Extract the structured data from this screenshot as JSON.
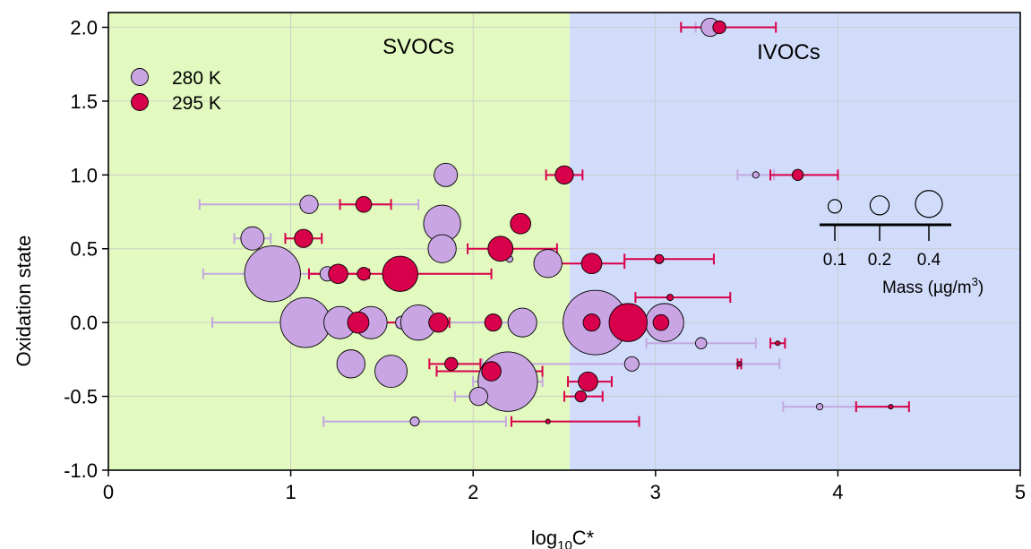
{
  "colors": {
    "svoc_region": "#e2f9bf",
    "ivoc_region": "#d1dcfa",
    "s280_fill": "#c9a6e3",
    "s280_bar": "#c3a8e0",
    "s295_fill": "#d8004a",
    "s295_bar": "#d8004a",
    "grid": "#c8c8c8"
  },
  "chart_data": {
    "type": "scatter",
    "xlabel_main": "log",
    "xlabel_sub": "10",
    "xlabel_tail": "C*",
    "ylabel": "Oxidation state",
    "xlim": [
      0,
      5
    ],
    "ylim": [
      -1.0,
      2.1
    ],
    "xticks": [
      0,
      1,
      2,
      3,
      4,
      5
    ],
    "xtick_labels": [
      "0",
      "1",
      "2",
      "3",
      "4",
      "5"
    ],
    "yticks": [
      -1.0,
      -0.5,
      0.0,
      0.5,
      1.0,
      1.5,
      2.0
    ],
    "ytick_labels": [
      "-1.0",
      "-0.5",
      "0.0",
      "0.5",
      "1.0",
      "1.5",
      "2.0"
    ],
    "grid": true,
    "regions": [
      {
        "label": "SVOCs",
        "x_range": [
          0,
          2.53
        ]
      },
      {
        "label": "IVOCs",
        "x_range": [
          2.53,
          5
        ]
      }
    ],
    "legend_position": "top-left",
    "size_legend": {
      "title": "Mass (µg/m",
      "title_sup": "3",
      "title_end": ")",
      "values": [
        0.1,
        0.2,
        0.4
      ],
      "labels": [
        "0.1",
        "0.2",
        "0.4"
      ]
    },
    "series": [
      {
        "name": "280 K",
        "points": [
          {
            "x": 3.3,
            "y": 2.0,
            "mass": 0.08,
            "xerr": [
              3.22,
              3.38
            ]
          },
          {
            "x": 1.85,
            "y": 1.0,
            "mass": 0.13
          },
          {
            "x": 3.55,
            "y": 1.0,
            "mass": 0.01,
            "xerr": [
              3.45,
              3.65
            ]
          },
          {
            "x": 1.1,
            "y": 0.8,
            "mass": 0.08,
            "xerr": [
              0.5,
              1.7
            ]
          },
          {
            "x": 1.83,
            "y": 0.67,
            "mass": 0.33
          },
          {
            "x": 0.79,
            "y": 0.57,
            "mass": 0.13,
            "xerr": [
              0.69,
              0.89
            ]
          },
          {
            "x": 1.83,
            "y": 0.5,
            "mass": 0.19
          },
          {
            "x": 2.2,
            "y": 0.43,
            "mass": 0.01
          },
          {
            "x": 2.41,
            "y": 0.4,
            "mass": 0.19,
            "xerr": [
              2.35,
              2.47
            ]
          },
          {
            "x": 0.9,
            "y": 0.33,
            "mass": 0.75,
            "xerr": [
              0.52,
              1.3
            ]
          },
          {
            "x": 1.2,
            "y": 0.33,
            "mass": 0.05
          },
          {
            "x": 1.4,
            "y": 0.33,
            "mass": 0.02
          },
          {
            "x": 2.67,
            "y": 0.17,
            "mass": 0.04
          },
          {
            "x": 1.08,
            "y": 0.0,
            "mass": 0.6,
            "xerr": [
              0.57,
              1.58
            ]
          },
          {
            "x": 1.27,
            "y": 0.0,
            "mass": 0.25
          },
          {
            "x": 1.44,
            "y": 0.0,
            "mass": 0.25
          },
          {
            "x": 1.61,
            "y": 0.0,
            "mass": 0.04
          },
          {
            "x": 1.7,
            "y": 0.0,
            "mass": 0.3,
            "xerr": [
              1.2,
              2.2
            ]
          },
          {
            "x": 2.27,
            "y": 0.0,
            "mass": 0.2
          },
          {
            "x": 2.67,
            "y": 0.0,
            "mass": 1.0,
            "xerr": [
              2.52,
              2.82
            ]
          },
          {
            "x": 3.05,
            "y": 0.0,
            "mass": 0.35,
            "xerr": [
              2.95,
              3.15
            ]
          },
          {
            "x": 3.25,
            "y": -0.14,
            "mass": 0.03,
            "xerr": [
              2.95,
              3.55
            ]
          },
          {
            "x": 1.33,
            "y": -0.28,
            "mass": 0.19
          },
          {
            "x": 1.55,
            "y": -0.33,
            "mass": 0.25
          },
          {
            "x": 2.87,
            "y": -0.28,
            "mass": 0.05,
            "xerr": [
              2.05,
              3.68
            ]
          },
          {
            "x": 2.19,
            "y": -0.4,
            "mass": 0.85,
            "xerr": [
              2.0,
              2.38
            ]
          },
          {
            "x": 2.03,
            "y": -0.5,
            "mass": 0.08,
            "xerr": [
              1.9,
              2.16
            ]
          },
          {
            "x": 1.68,
            "y": -0.67,
            "mass": 0.02,
            "xerr": [
              1.18,
              2.18
            ]
          },
          {
            "x": 3.9,
            "y": -0.57,
            "mass": 0.01,
            "xerr": [
              3.7,
              4.1
            ]
          }
        ]
      },
      {
        "name": "295 K",
        "points": [
          {
            "x": 3.35,
            "y": 2.0,
            "mass": 0.04,
            "xerr": [
              3.14,
              3.66
            ]
          },
          {
            "x": 2.5,
            "y": 1.0,
            "mass": 0.08,
            "xerr": [
              2.4,
              2.6
            ]
          },
          {
            "x": 3.78,
            "y": 1.0,
            "mass": 0.03,
            "xerr": [
              3.63,
              4.0
            ]
          },
          {
            "x": 1.4,
            "y": 0.8,
            "mass": 0.06,
            "xerr": [
              1.27,
              1.55
            ]
          },
          {
            "x": 2.26,
            "y": 0.67,
            "mass": 0.1
          },
          {
            "x": 1.07,
            "y": 0.57,
            "mass": 0.08,
            "xerr": [
              0.97,
              1.17
            ]
          },
          {
            "x": 2.15,
            "y": 0.5,
            "mass": 0.15,
            "xerr": [
              1.97,
              2.46
            ]
          },
          {
            "x": 2.65,
            "y": 0.4,
            "mass": 0.1,
            "xerr": [
              2.44,
              2.83
            ]
          },
          {
            "x": 3.02,
            "y": 0.43,
            "mass": 0.02,
            "xerr": [
              2.83,
              3.32
            ]
          },
          {
            "x": 1.26,
            "y": 0.33,
            "mass": 0.09,
            "xerr": [
              1.1,
              1.43
            ]
          },
          {
            "x": 1.4,
            "y": 0.33,
            "mass": 0.04
          },
          {
            "x": 1.6,
            "y": 0.33,
            "mass": 0.3,
            "xerr": [
              1.1,
              2.1
            ]
          },
          {
            "x": 3.08,
            "y": 0.17,
            "mass": 0.01,
            "xerr": [
              2.89,
              3.41
            ]
          },
          {
            "x": 1.37,
            "y": 0.0,
            "mass": 0.11,
            "xerr": [
              1.15,
              1.59
            ]
          },
          {
            "x": 1.81,
            "y": 0.0,
            "mass": 0.09,
            "xerr": [
              1.75,
              1.87
            ]
          },
          {
            "x": 2.11,
            "y": 0.0,
            "mass": 0.07
          },
          {
            "x": 2.65,
            "y": 0.0,
            "mass": 0.07
          },
          {
            "x": 2.85,
            "y": 0.0,
            "mass": 0.35,
            "xerr": [
              2.55,
              3.15
            ]
          },
          {
            "x": 3.03,
            "y": 0.0,
            "mass": 0.06
          },
          {
            "x": 3.67,
            "y": -0.14,
            "mass": 0.005,
            "xerr": [
              3.63,
              3.71
            ]
          },
          {
            "x": 1.88,
            "y": -0.28,
            "mass": 0.04,
            "xerr": [
              1.76,
              2.04
            ]
          },
          {
            "x": 2.1,
            "y": -0.33,
            "mass": 0.09,
            "xerr": [
              1.8,
              2.38
            ]
          },
          {
            "x": 3.46,
            "y": -0.28,
            "mass": 0.005,
            "xerr": [
              3.45,
              3.47
            ]
          },
          {
            "x": 2.63,
            "y": -0.4,
            "mass": 0.09,
            "xerr": [
              2.52,
              2.76
            ]
          },
          {
            "x": 2.59,
            "y": -0.5,
            "mass": 0.03,
            "xerr": [
              2.5,
              2.71
            ]
          },
          {
            "x": 2.41,
            "y": -0.67,
            "mass": 0.005,
            "xerr": [
              2.21,
              2.91
            ]
          },
          {
            "x": 4.29,
            "y": -0.57,
            "mass": 0.005,
            "xerr": [
              4.1,
              4.39
            ]
          }
        ]
      }
    ]
  }
}
